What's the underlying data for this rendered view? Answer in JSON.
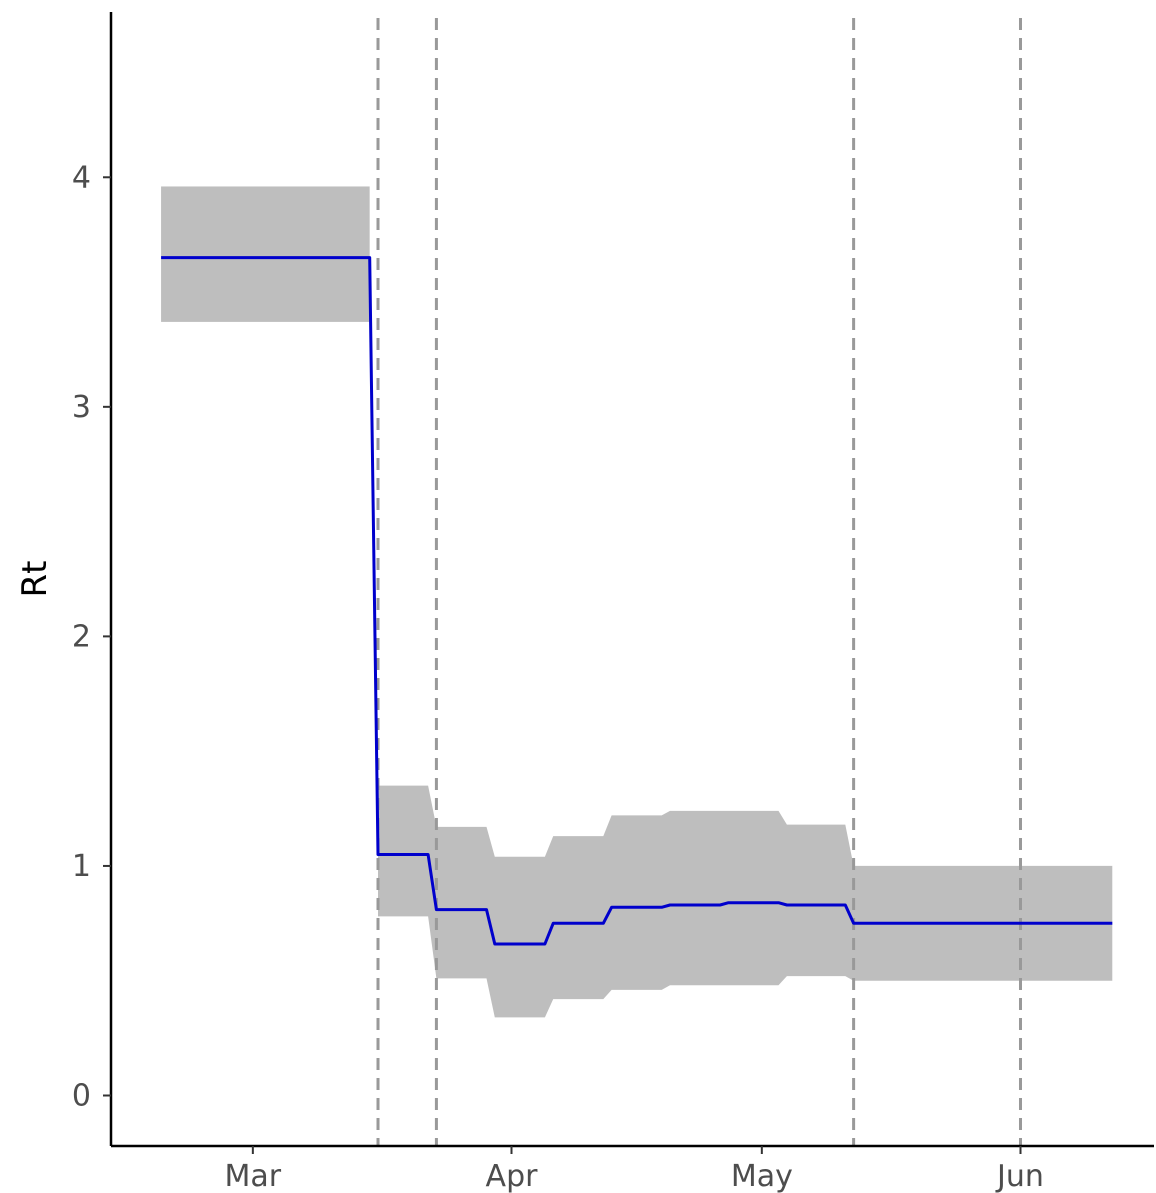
{
  "chart_data": {
    "type": "line",
    "title": "",
    "xlabel": "",
    "ylabel": "Rt",
    "x_axis": {
      "scale": "date",
      "xlim": [
        "2020-02-13",
        "2020-06-17"
      ]
    },
    "y_axis": {
      "ylim": [
        -0.22,
        4.72
      ],
      "ticks": [
        0,
        1,
        2,
        3,
        4
      ]
    },
    "x_tick_labels": [
      {
        "date": "2020-03-01",
        "label": "Mar"
      },
      {
        "date": "2020-04-01",
        "label": "Apr"
      },
      {
        "date": "2020-05-01",
        "label": "May"
      },
      {
        "date": "2020-06-01",
        "label": "Jun"
      }
    ],
    "grid": false,
    "legend": "none",
    "colors": {
      "line": "#0000cc",
      "ribbon": "#bebebe",
      "vlines": "#999999",
      "axis": "#000000"
    },
    "vertical_lines": [
      "2020-03-16",
      "2020-03-23",
      "2020-05-12",
      "2020-06-01"
    ],
    "series": [
      {
        "points": [
          {
            "x": "2020-02-19",
            "y": 3.65,
            "lo": 3.37,
            "hi": 3.96
          },
          {
            "x": "2020-03-15",
            "y": 3.65,
            "lo": 3.37,
            "hi": 3.96
          },
          {
            "x": "2020-03-16",
            "y": 1.05,
            "lo": 0.78,
            "hi": 1.35
          },
          {
            "x": "2020-03-22",
            "y": 1.05,
            "lo": 0.78,
            "hi": 1.35
          },
          {
            "x": "2020-03-23",
            "y": 0.81,
            "lo": 0.51,
            "hi": 1.17
          },
          {
            "x": "2020-03-29",
            "y": 0.81,
            "lo": 0.51,
            "hi": 1.17
          },
          {
            "x": "2020-03-30",
            "y": 0.66,
            "lo": 0.34,
            "hi": 1.04
          },
          {
            "x": "2020-04-05",
            "y": 0.66,
            "lo": 0.34,
            "hi": 1.04
          },
          {
            "x": "2020-04-06",
            "y": 0.75,
            "lo": 0.42,
            "hi": 1.13
          },
          {
            "x": "2020-04-12",
            "y": 0.75,
            "lo": 0.42,
            "hi": 1.13
          },
          {
            "x": "2020-04-13",
            "y": 0.82,
            "lo": 0.46,
            "hi": 1.22
          },
          {
            "x": "2020-04-19",
            "y": 0.82,
            "lo": 0.46,
            "hi": 1.22
          },
          {
            "x": "2020-04-20",
            "y": 0.83,
            "lo": 0.48,
            "hi": 1.24
          },
          {
            "x": "2020-04-26",
            "y": 0.83,
            "lo": 0.48,
            "hi": 1.24
          },
          {
            "x": "2020-04-27",
            "y": 0.84,
            "lo": 0.48,
            "hi": 1.24
          },
          {
            "x": "2020-05-03",
            "y": 0.84,
            "lo": 0.48,
            "hi": 1.24
          },
          {
            "x": "2020-05-04",
            "y": 0.83,
            "lo": 0.52,
            "hi": 1.18
          },
          {
            "x": "2020-05-11",
            "y": 0.83,
            "lo": 0.52,
            "hi": 1.18
          },
          {
            "x": "2020-05-12",
            "y": 0.75,
            "lo": 0.5,
            "hi": 1.0
          },
          {
            "x": "2020-06-12",
            "y": 0.75,
            "lo": 0.5,
            "hi": 1.0
          }
        ]
      }
    ]
  }
}
